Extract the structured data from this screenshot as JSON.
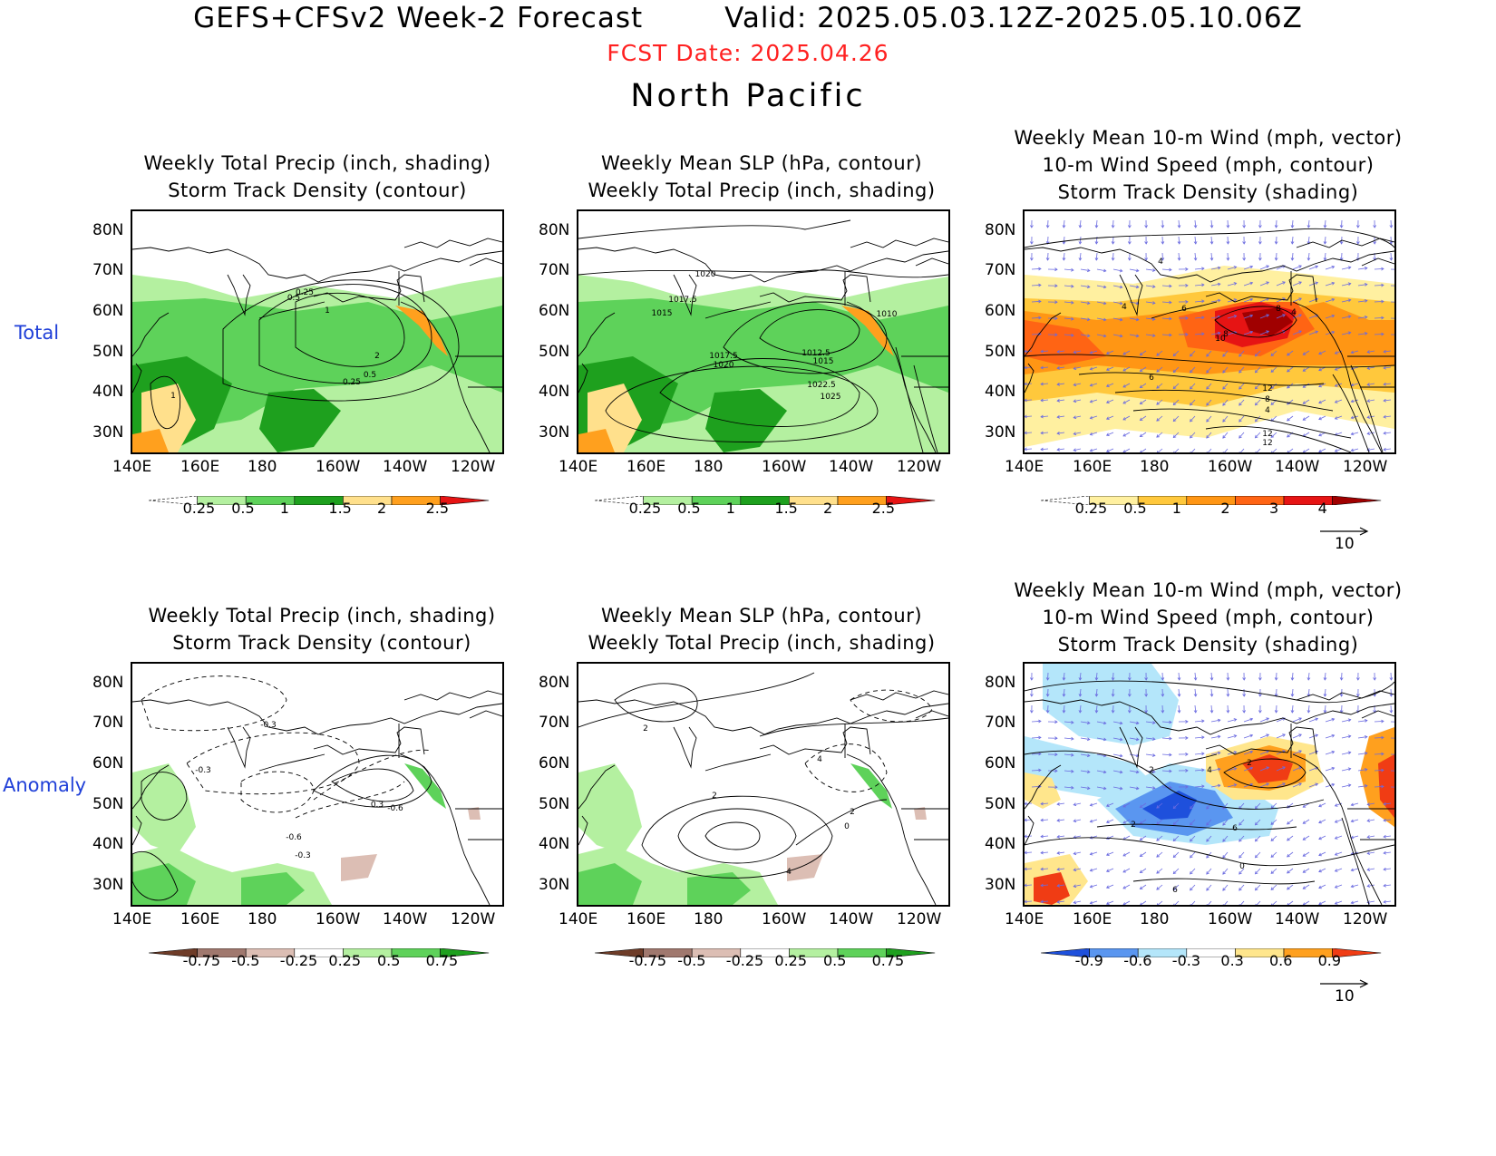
{
  "header": {
    "model": "GEFS+CFSv2 Week-2 Forecast",
    "valid": "Valid: 2025.05.03.12Z-2025.05.10.06Z",
    "fcst_date": "FCST Date: 2025.04.26",
    "region": "North Pacific"
  },
  "rows": [
    {
      "label": "Total"
    },
    {
      "label": "Anomaly"
    }
  ],
  "panel_titles": {
    "precip_track": [
      "Weekly Total Precip (inch, shading)",
      "Storm Track Density (contour)"
    ],
    "slp_precip": [
      "Weekly Mean SLP (hPa, contour)",
      "Weekly Total Precip (inch, shading)"
    ],
    "wind_track": [
      "Weekly Mean 10-m Wind (mph, vector)",
      "10-m Wind Speed (mph, contour)",
      "Storm Track Density (shading)"
    ]
  },
  "axes": {
    "lat_labels": [
      "80N",
      "70N",
      "60N",
      "50N",
      "40N",
      "30N"
    ],
    "lon_labels": [
      "140E",
      "160E",
      "180",
      "160W",
      "140W",
      "120W"
    ]
  },
  "colorbars": {
    "precip_total": [
      "0.25",
      "0.5",
      "1",
      "1.5",
      "2",
      "2.5"
    ],
    "track_total": [
      "0.25",
      "0.5",
      "1",
      "2",
      "3",
      "4"
    ],
    "precip_anom": [
      "-0.75",
      "-0.5",
      "-0.25",
      "0.25",
      "0.5",
      "0.75"
    ],
    "track_anom": [
      "-0.9",
      "-0.6",
      "-0.3",
      "0.3",
      "0.6",
      "0.9"
    ]
  },
  "colors": {
    "precip_total": [
      "#ffffff",
      "#b4f0a0",
      "#5ed25a",
      "#1ea01e",
      "#ffe08c",
      "#ffa01e",
      "#e61414"
    ],
    "track_total": [
      "#ffffff",
      "#fff0a0",
      "#ffc83c",
      "#ff9614",
      "#ff6414",
      "#e61414",
      "#a00000"
    ],
    "precip_anom": [
      "#6e3c28",
      "#a0786e",
      "#dcbeb4",
      "#ffffff",
      "#b4f0a0",
      "#5ed25a",
      "#1ea01e"
    ],
    "track_anom": [
      "#1e50dc",
      "#5a96f0",
      "#b4e6fa",
      "#ffffff",
      "#ffe68c",
      "#ffa01e",
      "#f03c14"
    ]
  },
  "wind_reference": "10",
  "contour_labels": {
    "total_precip": [
      "0.25",
      "0.5",
      "1",
      "2",
      "0.5",
      "0.25",
      "1"
    ],
    "total_slp": [
      "1020",
      "1017.5",
      "1015",
      "1010",
      "1017.5",
      "1020",
      "1012.5",
      "1015",
      "1022.5",
      "1025"
    ],
    "total_wind": [
      "4",
      "4",
      "6",
      "8",
      "4",
      "8",
      "10",
      "6",
      "12",
      "8",
      "4",
      "12",
      "12"
    ],
    "anom_track": [
      "-0.3",
      "-0.3",
      "-0.6",
      "0.3",
      "-0.6",
      "-0.3"
    ],
    "anom_slp": [
      "2",
      "2",
      "4",
      "2",
      "0",
      "4"
    ],
    "anom_wind": [
      "2",
      "4",
      "2",
      "2",
      "6",
      "0",
      "6"
    ]
  }
}
